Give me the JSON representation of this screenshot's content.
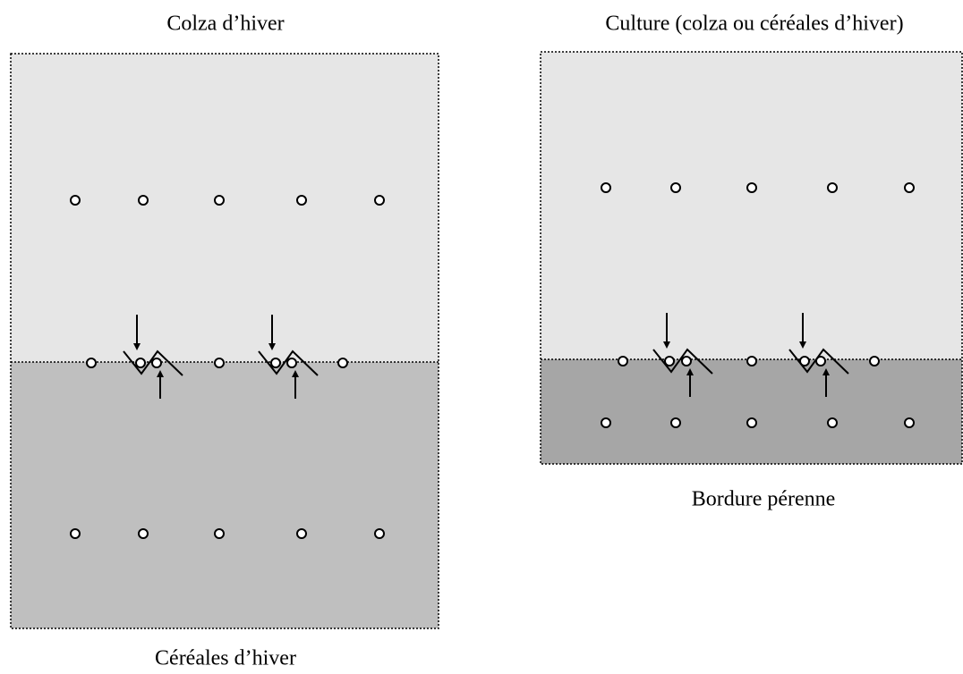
{
  "left": {
    "title": "Colza d’hiver",
    "bottom_label": "Céréales d’hiver"
  },
  "right": {
    "title": "Culture (colza ou céréales d’hiver)",
    "bottom_label": "Bordure pérenne"
  }
}
